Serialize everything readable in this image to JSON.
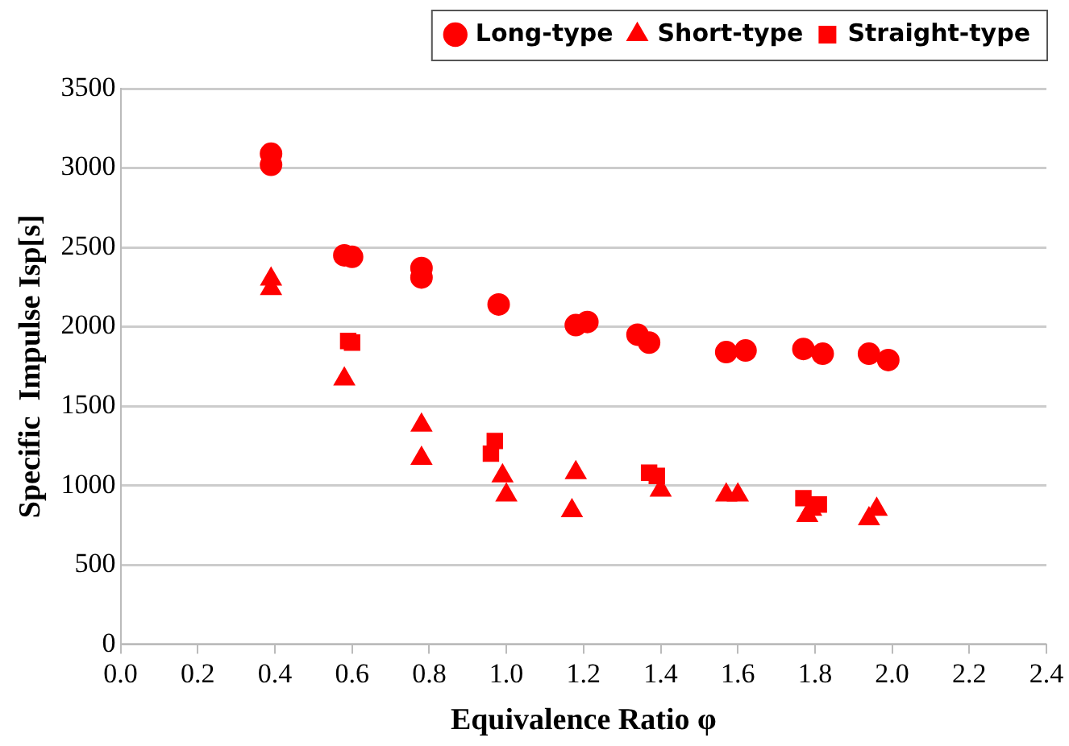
{
  "chart_data": {
    "type": "scatter",
    "xlabel": "Equivalence Ratio φ",
    "ylabel": "Specific  Impulse Isp[s]",
    "xlim": [
      0,
      2.4
    ],
    "xticks": [
      {
        "value": 0,
        "label": "0.0"
      },
      {
        "value": 0.2,
        "label": "0.2"
      },
      {
        "value": 0.4,
        "label": "0.4"
      },
      {
        "value": 0.6,
        "label": "0.6"
      },
      {
        "value": 0.8,
        "label": "0.8"
      },
      {
        "value": 1,
        "label": "1.0"
      },
      {
        "value": 1.2,
        "label": "1.2"
      },
      {
        "value": 1.4,
        "label": "1.4"
      },
      {
        "value": 1.6,
        "label": "1.6"
      },
      {
        "value": 1.8,
        "label": "1.8"
      },
      {
        "value": 2,
        "label": "2.0"
      },
      {
        "value": 2.2,
        "label": "2.2"
      },
      {
        "value": 2.4,
        "label": "2.4"
      }
    ],
    "ylim": [
      0,
      3500
    ],
    "yticks": [
      0,
      500,
      1000,
      1500,
      2000,
      2500,
      3000,
      3500
    ],
    "grid": "y",
    "legend": "top right",
    "series": [
      {
        "name": "Long-type",
        "color": "#ff0000",
        "marker": "circle",
        "x": [
          0.39,
          0.39,
          0.58,
          0.6,
          0.78,
          0.78,
          0.98,
          1.18,
          1.21,
          1.34,
          1.37,
          1.57,
          1.62,
          1.77,
          1.82,
          1.94,
          1.99
        ],
        "values": [
          3090,
          3020,
          2450,
          2440,
          2370,
          2310,
          2140,
          2010,
          2030,
          1950,
          1900,
          1840,
          1850,
          1860,
          1830,
          1830,
          1790
        ]
      },
      {
        "name": "Short-type",
        "color": "#ff0000",
        "marker": "triangle",
        "x": [
          0.39,
          0.39,
          0.58,
          0.78,
          0.78,
          0.99,
          1.0,
          1.18,
          1.17,
          1.4,
          1.57,
          1.6,
          1.78,
          1.79,
          1.94,
          1.96
        ],
        "values": [
          2300,
          2240,
          1670,
          1380,
          1170,
          1060,
          940,
          1080,
          840,
          970,
          940,
          940,
          810,
          850,
          790,
          850
        ]
      },
      {
        "name": "Straight-type",
        "color": "#ff0000",
        "marker": "square",
        "x": [
          0.59,
          0.6,
          0.97,
          0.96,
          1.37,
          1.39,
          1.77,
          1.81
        ],
        "values": [
          1910,
          1900,
          1280,
          1200,
          1080,
          1060,
          920,
          880
        ]
      }
    ]
  }
}
